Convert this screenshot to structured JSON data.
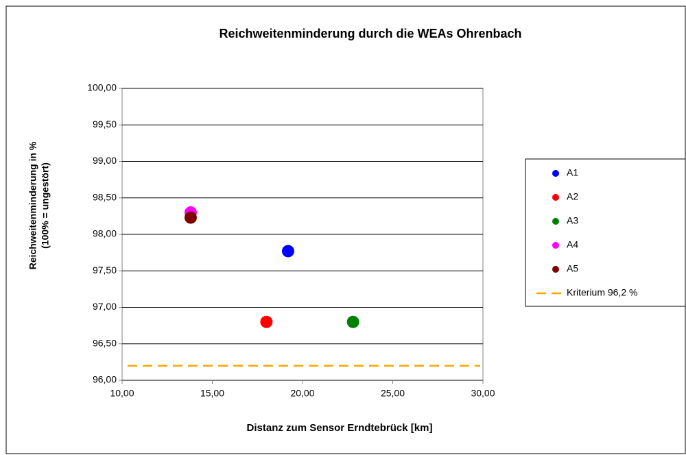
{
  "chart_data": {
    "type": "scatter",
    "title": "Reichweitenminderung durch die WEAs Ohrenbach",
    "xlabel": "Distanz zum Sensor Erndtebrück [km]",
    "ylabel": [
      "Reichweitenminderung in %",
      "(100% = ungestört)"
    ],
    "xlim": [
      10,
      30
    ],
    "xticks": [
      {
        "value": 10,
        "label": "10,00"
      },
      {
        "value": 15,
        "label": "15,00"
      },
      {
        "value": 20,
        "label": "20,00"
      },
      {
        "value": 25,
        "label": "25,00"
      },
      {
        "value": 30,
        "label": "30,00"
      }
    ],
    "ylim": [
      96,
      100
    ],
    "yticks": [
      {
        "value": 96,
        "label": "96,00"
      },
      {
        "value": 96.5,
        "label": "96,50"
      },
      {
        "value": 97,
        "label": "97,00"
      },
      {
        "value": 97.5,
        "label": "97,50"
      },
      {
        "value": 98,
        "label": "98,00"
      },
      {
        "value": 98.5,
        "label": "98,50"
      },
      {
        "value": 99,
        "label": "99,00"
      },
      {
        "value": 99.5,
        "label": "99,50"
      },
      {
        "value": 100,
        "label": "100,00"
      }
    ],
    "grid": true,
    "legend": "right",
    "series": [
      {
        "name": "A1",
        "color": "#0000ff",
        "x": [
          19.2
        ],
        "values": [
          97.77
        ]
      },
      {
        "name": "A2",
        "color": "#ff0000",
        "x": [
          18.0
        ],
        "values": [
          96.8
        ]
      },
      {
        "name": "A3",
        "color": "#008000",
        "x": [
          22.8
        ],
        "values": [
          96.8
        ]
      },
      {
        "name": "A4",
        "color": "#ff00ff",
        "x": [
          13.8
        ],
        "values": [
          98.3
        ]
      },
      {
        "name": "A5",
        "color": "#800000",
        "x": [
          13.8
        ],
        "values": [
          98.23
        ]
      }
    ],
    "reference_line": {
      "name": "Kriterium 96,2 %",
      "value": 96.2,
      "color": "#ffa500"
    }
  }
}
